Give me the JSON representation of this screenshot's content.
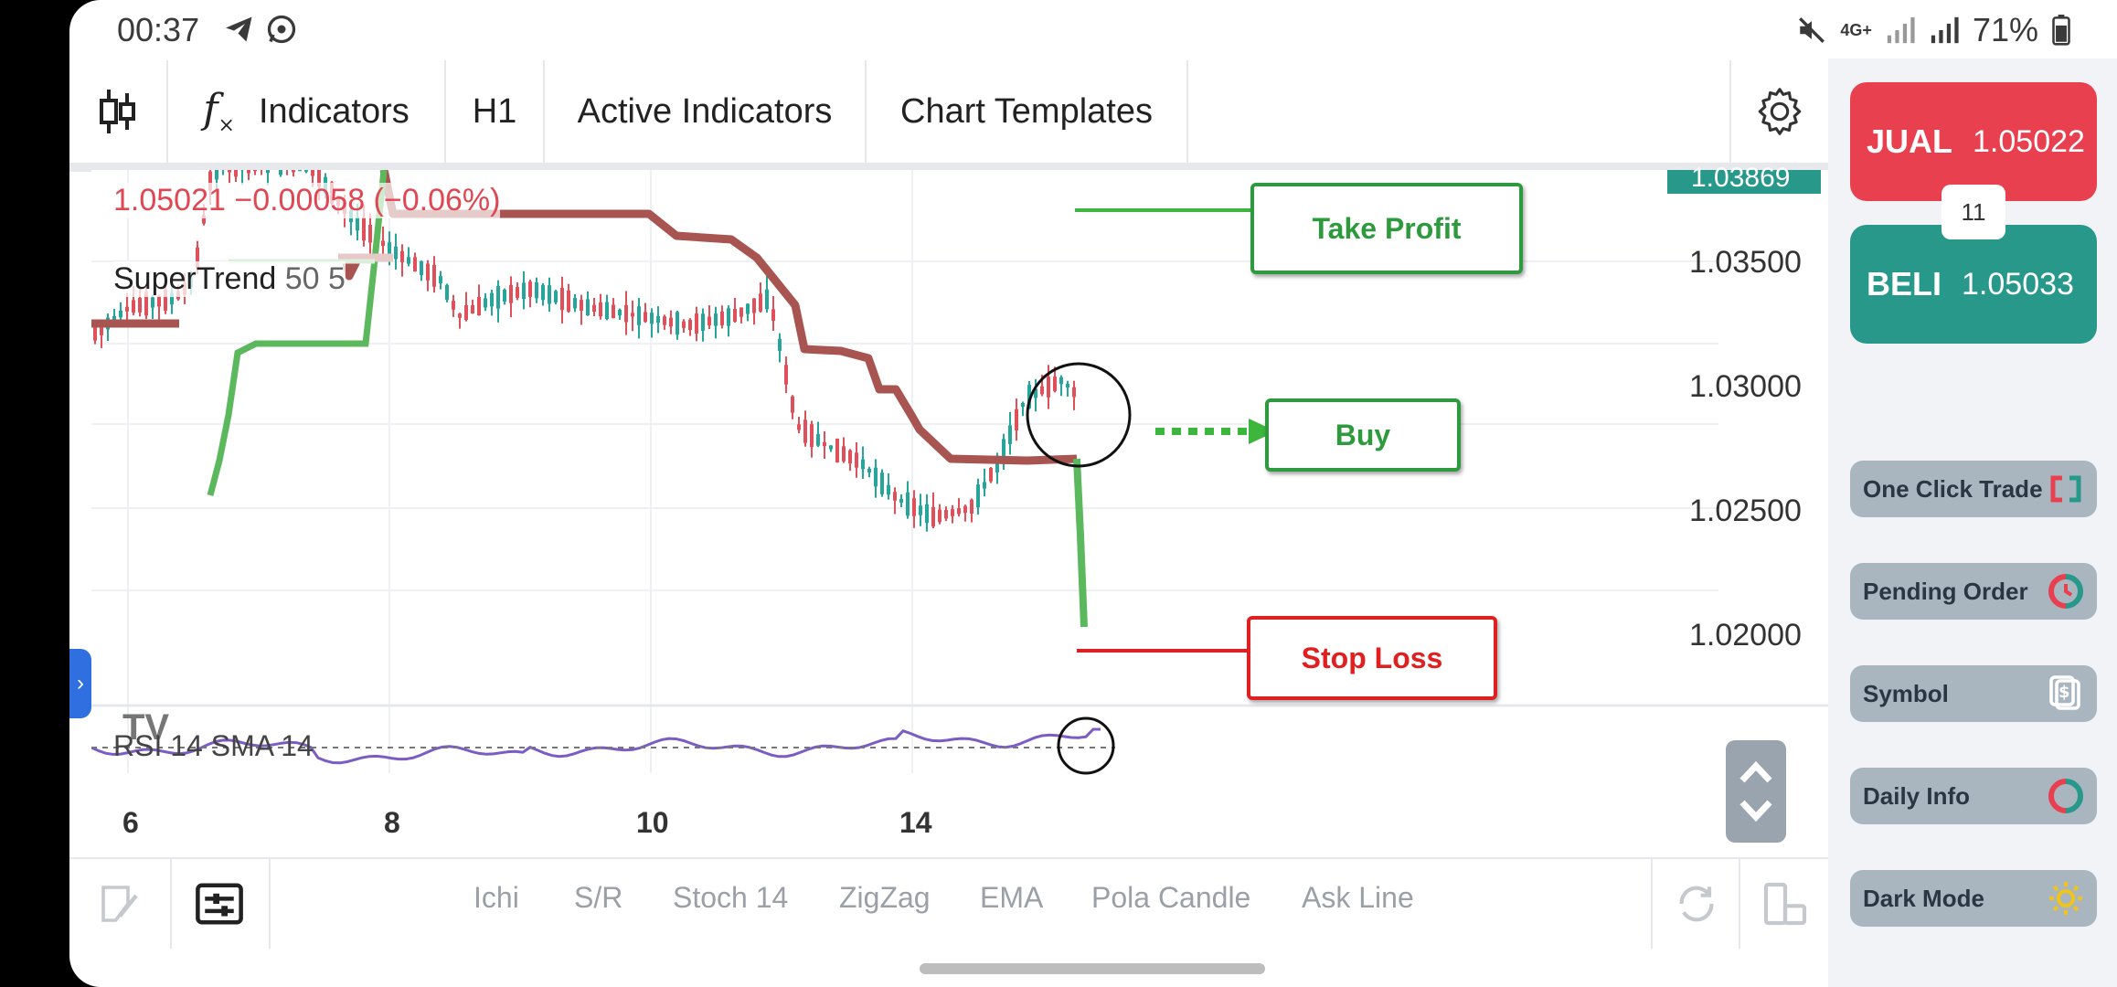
{
  "status": {
    "time": "00:37",
    "battery": "71%",
    "network": "4G+"
  },
  "toolbar": {
    "indicators": "Indicators",
    "timeframe": "H1",
    "active_indicators": "Active Indicators",
    "chart_templates": "Chart Templates"
  },
  "chart": {
    "price_info": "1.05021  −0.00058 (−0.06%)",
    "indicator_label": "SuperTrend",
    "indicator_params": "50 5",
    "current_price_tag": "1.03869",
    "price_ticks": [
      "1.03500",
      "1.03000",
      "1.02500",
      "1.02000"
    ],
    "x_ticks": [
      "6",
      "8",
      "10",
      "14"
    ],
    "rsi_label": "RSI 14 SMA 14"
  },
  "annotations": {
    "take_profit": "Take Profit",
    "buy": "Buy",
    "stop_loss": "Stop Loss"
  },
  "bottom_tabs": [
    "Ichi",
    "S/R",
    "Stoch 14",
    "ZigZag",
    "EMA",
    "Pola Candle",
    "Ask Line"
  ],
  "trade": {
    "sell_label": "JUAL",
    "sell_price": "1.05022",
    "buy_label": "BELI",
    "buy_price": "1.05033",
    "spread": "11"
  },
  "side_buttons": [
    "One Click Trade",
    "Pending Order",
    "Symbol",
    "Daily Info",
    "Dark Mode"
  ],
  "colors": {
    "sell": "#e8404f",
    "buy": "#28988b",
    "supertrend_down": "#a85450",
    "supertrend_up": "#5cb85c",
    "rsi": "#7b5cc4"
  }
}
